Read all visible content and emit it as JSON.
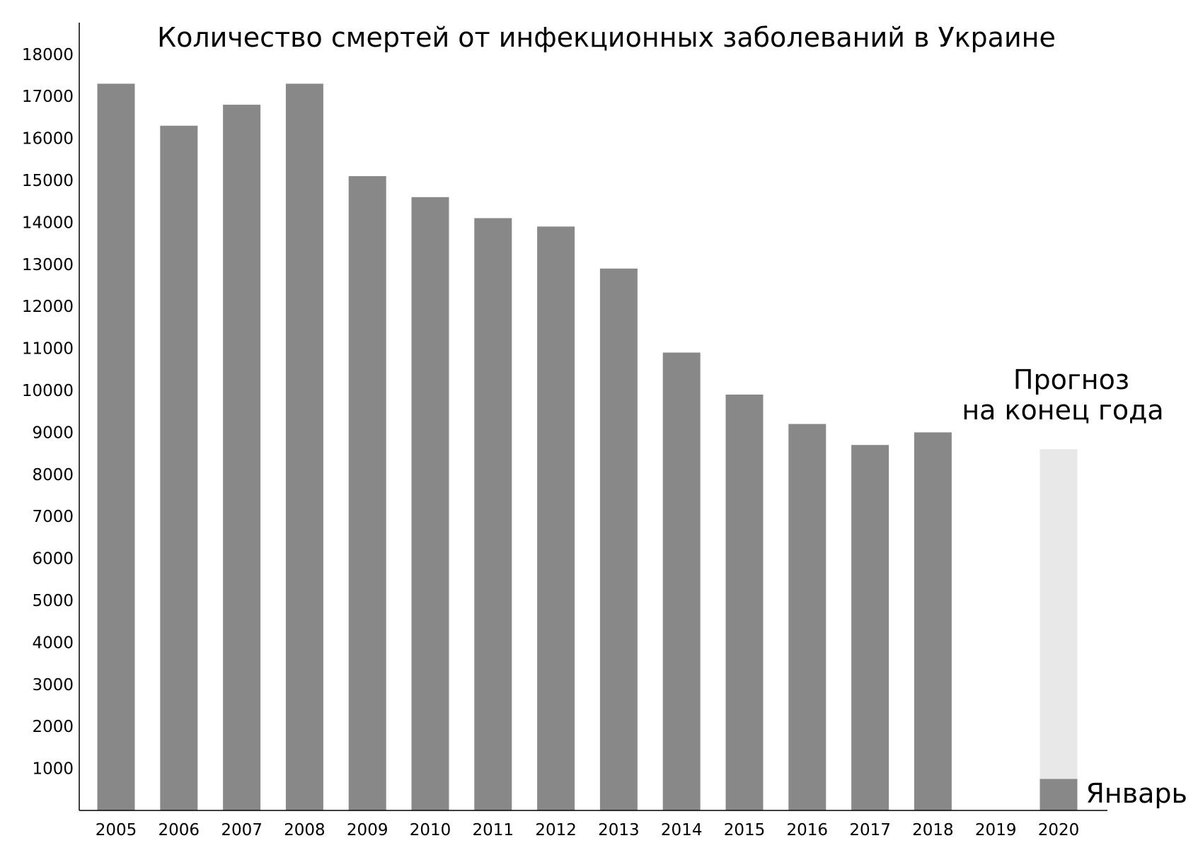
{
  "chart_data": {
    "type": "bar",
    "title": "Количество смертей от инфекционных заболеваний в Украине",
    "xlabel": "",
    "ylabel": "",
    "categories": [
      "2005",
      "2006",
      "2007",
      "2008",
      "2009",
      "2010",
      "2011",
      "2012",
      "2013",
      "2014",
      "2015",
      "2016",
      "2017",
      "2018",
      "2019",
      "2020"
    ],
    "values": [
      17300,
      16300,
      16800,
      17300,
      15100,
      14600,
      14100,
      13900,
      12900,
      10900,
      9900,
      9200,
      8700,
      9000,
      null,
      750
    ],
    "forecast": {
      "category": "2020",
      "value": 8600,
      "label_line1": "Прогноз",
      "label_line2": "на конец года",
      "color": "#e8e8e8"
    },
    "january_label": "Январь",
    "ylim": [
      0,
      18800
    ],
    "yticks": [
      1000,
      2000,
      3000,
      4000,
      5000,
      6000,
      7000,
      8000,
      9000,
      10000,
      11000,
      12000,
      13000,
      14000,
      15000,
      16000,
      17000,
      18000
    ],
    "bar_color": "#888888",
    "grid": false,
    "legend": "none"
  }
}
